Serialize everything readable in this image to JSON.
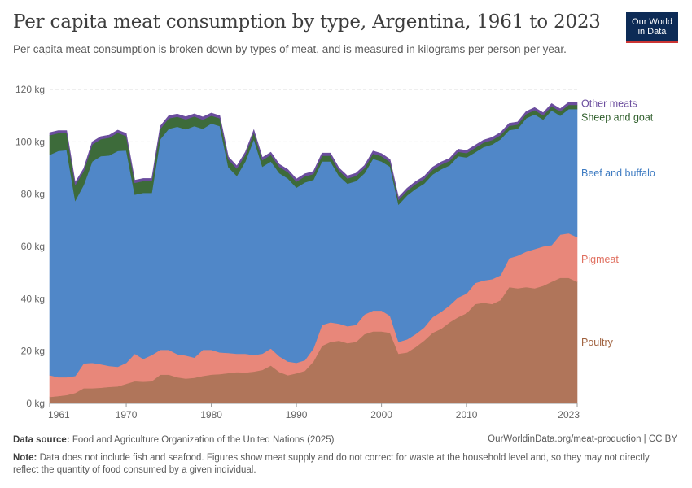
{
  "header": {
    "title": "Per capita meat consumption by type, Argentina, 1961 to 2023",
    "subtitle": "Per capita meat consumption is broken down by types of meat, and is measured in kilograms per person per year."
  },
  "logo": {
    "line1": "Our World",
    "line2": "in Data"
  },
  "footer": {
    "source_label": "Data source:",
    "source_text": "Food and Agriculture Organization of the United Nations (2025)",
    "url": "OurWorldinData.org/meat-production | CC BY",
    "note_label": "Note:",
    "note_text": "Data does not include fish and seafood. Figures show meat supply and do not correct for waste at the household level and, so they may not directly reflect the quantity of food consumed by a given individual."
  },
  "chart_data": {
    "type": "area",
    "stacked": true,
    "ylim": [
      0,
      120
    ],
    "yticks": [
      0,
      20,
      40,
      60,
      80,
      100,
      120
    ],
    "ytick_labels": [
      "0 kg",
      "20 kg",
      "40 kg",
      "60 kg",
      "80 kg",
      "100 kg",
      "120 kg"
    ],
    "xlim": [
      1961,
      2023
    ],
    "xticks": [
      1961,
      1970,
      1980,
      1990,
      2000,
      2010,
      2023
    ],
    "xtick_labels": [
      "1961",
      "1970",
      "1980",
      "1990",
      "2000",
      "2010",
      "2023"
    ],
    "x": [
      1961,
      1962,
      1963,
      1964,
      1965,
      1966,
      1967,
      1968,
      1969,
      1970,
      1971,
      1972,
      1973,
      1974,
      1975,
      1976,
      1977,
      1978,
      1979,
      1980,
      1981,
      1982,
      1983,
      1984,
      1985,
      1986,
      1987,
      1988,
      1989,
      1990,
      1991,
      1992,
      1993,
      1994,
      1995,
      1996,
      1997,
      1998,
      1999,
      2000,
      2001,
      2002,
      2003,
      2004,
      2005,
      2006,
      2007,
      2008,
      2009,
      2010,
      2011,
      2012,
      2013,
      2014,
      2015,
      2016,
      2017,
      2018,
      2019,
      2020,
      2021,
      2022,
      2023
    ],
    "series": [
      {
        "name": "Poultry",
        "color": "#b0755a",
        "values": [
          2.5,
          2.8,
          3.2,
          4.0,
          5.8,
          5.8,
          6.0,
          6.3,
          6.5,
          7.5,
          8.5,
          8.3,
          8.5,
          11.0,
          11.0,
          10.0,
          9.5,
          9.8,
          10.5,
          11.0,
          11.2,
          11.6,
          12.0,
          11.8,
          12.2,
          12.8,
          14.5,
          12.0,
          10.8,
          11.5,
          12.5,
          16.0,
          22.0,
          23.5,
          24.0,
          23.0,
          23.5,
          26.5,
          27.5,
          27.5,
          27.0,
          19.0,
          19.5,
          21.5,
          24.0,
          27.0,
          28.5,
          31.0,
          33.0,
          34.5,
          38.0,
          38.5,
          38.0,
          39.5,
          44.5,
          44.0,
          44.5,
          44.0,
          45.0,
          46.5,
          48.0,
          48.0,
          46.5
        ]
      },
      {
        "name": "Pigmeat",
        "color": "#e8877a",
        "values": [
          8.3,
          7.2,
          6.8,
          6.5,
          9.5,
          9.7,
          9.0,
          8.0,
          7.5,
          8.0,
          10.5,
          8.7,
          10.0,
          9.5,
          9.5,
          8.8,
          8.8,
          7.7,
          10.0,
          9.5,
          8.3,
          7.7,
          7.0,
          7.2,
          6.3,
          6.2,
          6.5,
          6.0,
          5.2,
          4.0,
          4.0,
          5.0,
          8.0,
          7.5,
          6.5,
          6.5,
          6.5,
          7.5,
          8.0,
          8.0,
          6.5,
          4.5,
          5.0,
          5.0,
          5.0,
          6.0,
          6.5,
          6.5,
          7.5,
          7.5,
          8.0,
          8.5,
          9.5,
          9.5,
          11.0,
          12.5,
          13.5,
          15.0,
          15.0,
          14.0,
          16.5,
          17.0,
          17.0
        ]
      },
      {
        "name": "Beef and buffalo",
        "color": "#5087c8",
        "values": [
          84.2,
          86.5,
          86.8,
          67.0,
          68.2,
          77.0,
          79.5,
          80.5,
          82.5,
          81.2,
          60.8,
          63.5,
          62.0,
          80.5,
          84.5,
          87.0,
          86.5,
          88.5,
          84.5,
          86.5,
          86.5,
          71.0,
          68.0,
          73.5,
          82.5,
          71.5,
          71.5,
          70.0,
          70.0,
          67.0,
          68.0,
          64.5,
          62.5,
          61.5,
          56.5,
          54.5,
          55.0,
          54.0,
          58.0,
          57.0,
          57.0,
          52.5,
          55.0,
          55.5,
          55.0,
          54.5,
          54.5,
          53.5,
          54.0,
          52.0,
          50.0,
          51.0,
          51.5,
          52.0,
          49.0,
          48.5,
          51.0,
          51.5,
          48.5,
          51.5,
          45.5,
          47.5,
          49.0
        ]
      },
      {
        "name": "Sheep and goat",
        "color": "#3d6b3a",
        "values": [
          7.5,
          6.8,
          6.5,
          6.0,
          5.3,
          6.5,
          6.5,
          6.8,
          7.0,
          5.5,
          4.5,
          4.5,
          4.5,
          4.0,
          4.0,
          3.8,
          3.8,
          3.7,
          3.5,
          3.0,
          3.0,
          3.0,
          2.8,
          2.6,
          2.6,
          2.5,
          2.5,
          2.4,
          2.4,
          2.3,
          2.3,
          2.2,
          2.2,
          2.2,
          2.0,
          2.0,
          2.0,
          2.0,
          2.0,
          2.0,
          1.8,
          1.8,
          1.8,
          1.8,
          1.8,
          1.8,
          1.8,
          1.7,
          1.7,
          1.7,
          1.7,
          1.7,
          1.7,
          1.6,
          1.6,
          1.6,
          1.6,
          1.6,
          1.6,
          1.6,
          1.6,
          1.6,
          1.6
        ]
      },
      {
        "name": "Other meats",
        "color": "#6b4d9e",
        "values": [
          1.0,
          1.0,
          1.0,
          1.0,
          1.0,
          1.0,
          1.0,
          1.0,
          1.0,
          1.0,
          1.0,
          1.0,
          1.0,
          1.0,
          1.0,
          1.0,
          1.0,
          1.0,
          1.0,
          1.0,
          1.0,
          1.0,
          1.0,
          1.0,
          1.0,
          1.0,
          1.0,
          1.0,
          1.0,
          1.0,
          1.0,
          1.0,
          1.0,
          1.0,
          1.0,
          1.0,
          1.0,
          1.0,
          1.0,
          1.0,
          1.0,
          1.0,
          1.0,
          1.0,
          1.0,
          1.0,
          1.0,
          1.0,
          1.0,
          1.0,
          1.0,
          1.0,
          1.0,
          1.0,
          1.0,
          1.0,
          1.0,
          1.0,
          1.0,
          1.0,
          1.0,
          1.0,
          1.0
        ]
      }
    ],
    "legend": "right"
  }
}
